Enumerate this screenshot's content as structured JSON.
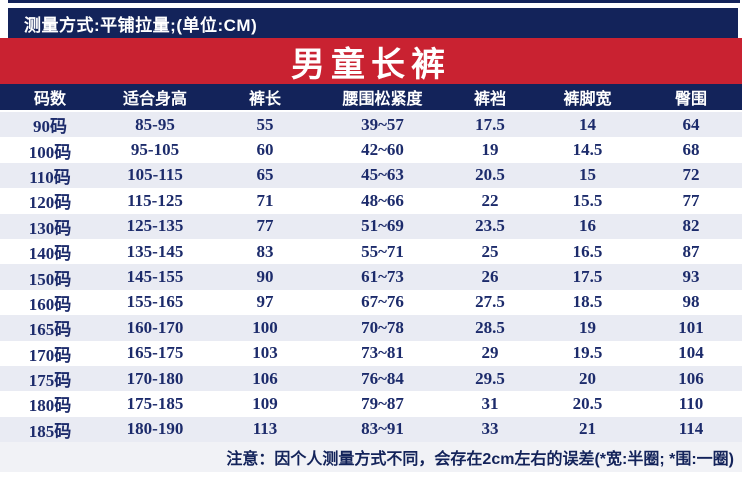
{
  "top_bar": {
    "text": "测量方式:平铺拉量;(单位:CM)"
  },
  "banner": {
    "title": "男童长裤"
  },
  "table": {
    "headers": [
      "码数",
      "适合身高",
      "裤长",
      "腰围松紧度",
      "裤裆",
      "裤脚宽",
      "臀围"
    ],
    "rows": [
      [
        "90码",
        "85-95",
        "55",
        "39~57",
        "17.5",
        "14",
        "64"
      ],
      [
        "100码",
        "95-105",
        "60",
        "42~60",
        "19",
        "14.5",
        "68"
      ],
      [
        "110码",
        "105-115",
        "65",
        "45~63",
        "20.5",
        "15",
        "72"
      ],
      [
        "120码",
        "115-125",
        "71",
        "48~66",
        "22",
        "15.5",
        "77"
      ],
      [
        "130码",
        "125-135",
        "77",
        "51~69",
        "23.5",
        "16",
        "82"
      ],
      [
        "140码",
        "135-145",
        "83",
        "55~71",
        "25",
        "16.5",
        "87"
      ],
      [
        "150码",
        "145-155",
        "90",
        "61~73",
        "26",
        "17.5",
        "93"
      ],
      [
        "160码",
        "155-165",
        "97",
        "67~76",
        "27.5",
        "18.5",
        "98"
      ],
      [
        "165码",
        "160-170",
        "100",
        "70~78",
        "28.5",
        "19",
        "101"
      ],
      [
        "170码",
        "165-175",
        "103",
        "73~81",
        "29",
        "19.5",
        "104"
      ],
      [
        "175码",
        "170-180",
        "106",
        "76~84",
        "29.5",
        "20",
        "106"
      ],
      [
        "180码",
        "175-185",
        "109",
        "79~87",
        "31",
        "20.5",
        "110"
      ],
      [
        "185码",
        "180-190",
        "113",
        "83~91",
        "33",
        "21",
        "114"
      ]
    ]
  },
  "note": {
    "text": "注意：因个人测量方式不同，会存在2cm左右的误差(*宽:半圈; *围:一圈)"
  },
  "colors": {
    "navy": "#13235a",
    "banner_red": "#c92231",
    "row_alt_bg": "#e9ebf3",
    "note_bg": "#f1f2f6",
    "data_text": "#1c2b6b",
    "header_text": "#ffffff"
  },
  "chart_data": {
    "type": "table",
    "title": "男童长裤",
    "measurement_note": "测量方式:平铺拉量;(单位:CM)",
    "columns": [
      "码数",
      "适合身高",
      "裤长",
      "腰围松紧度",
      "裤裆",
      "裤脚宽",
      "臀围"
    ],
    "unit": "CM",
    "rows": [
      {
        "码数": "90码",
        "适合身高": "85-95",
        "裤长": 55,
        "腰围松紧度": "39~57",
        "裤裆": 17.5,
        "裤脚宽": 14,
        "臀围": 64
      },
      {
        "码数": "100码",
        "适合身高": "95-105",
        "裤长": 60,
        "腰围松紧度": "42~60",
        "裤裆": 19,
        "裤脚宽": 14.5,
        "臀围": 68
      },
      {
        "码数": "110码",
        "适合身高": "105-115",
        "裤长": 65,
        "腰围松紧度": "45~63",
        "裤裆": 20.5,
        "裤脚宽": 15,
        "臀围": 72
      },
      {
        "码数": "120码",
        "适合身高": "115-125",
        "裤长": 71,
        "腰围松紧度": "48~66",
        "裤裆": 22,
        "裤脚宽": 15.5,
        "臀围": 77
      },
      {
        "码数": "130码",
        "适合身高": "125-135",
        "裤长": 77,
        "腰围松紧度": "51~69",
        "裤裆": 23.5,
        "裤脚宽": 16,
        "臀围": 82
      },
      {
        "码数": "140码",
        "适合身高": "135-145",
        "裤长": 83,
        "腰围松紧度": "55~71",
        "裤裆": 25,
        "裤脚宽": 16.5,
        "臀围": 87
      },
      {
        "码数": "150码",
        "适合身高": "145-155",
        "裤长": 90,
        "腰围松紧度": "61~73",
        "裤裆": 26,
        "裤脚宽": 17.5,
        "臀围": 93
      },
      {
        "码数": "160码",
        "适合身高": "155-165",
        "裤长": 97,
        "腰围松紧度": "67~76",
        "裤裆": 27.5,
        "裤脚宽": 18.5,
        "臀围": 98
      },
      {
        "码数": "165码",
        "适合身高": "160-170",
        "裤长": 100,
        "腰围松紧度": "70~78",
        "裤裆": 28.5,
        "裤脚宽": 19,
        "臀围": 101
      },
      {
        "码数": "170码",
        "适合身高": "165-175",
        "裤长": 103,
        "腰围松紧度": "73~81",
        "裤裆": 29,
        "裤脚宽": 19.5,
        "臀围": 104
      },
      {
        "码数": "175码",
        "适合身高": "170-180",
        "裤长": 106,
        "腰围松紧度": "76~84",
        "裤裆": 29.5,
        "裤脚宽": 20,
        "臀围": 106
      },
      {
        "码数": "180码",
        "适合身高": "175-185",
        "裤长": 109,
        "腰围松紧度": "79~87",
        "裤裆": 31,
        "裤脚宽": 20.5,
        "臀围": 110
      },
      {
        "码数": "185码",
        "适合身高": "180-190",
        "裤长": 113,
        "腰围松紧度": "83~91",
        "裤裆": 33,
        "裤脚宽": 21,
        "臀围": 114
      }
    ],
    "footnote": "注意：因个人测量方式不同，会存在2cm左右的误差(*宽:半圈; *围:一圈)"
  }
}
